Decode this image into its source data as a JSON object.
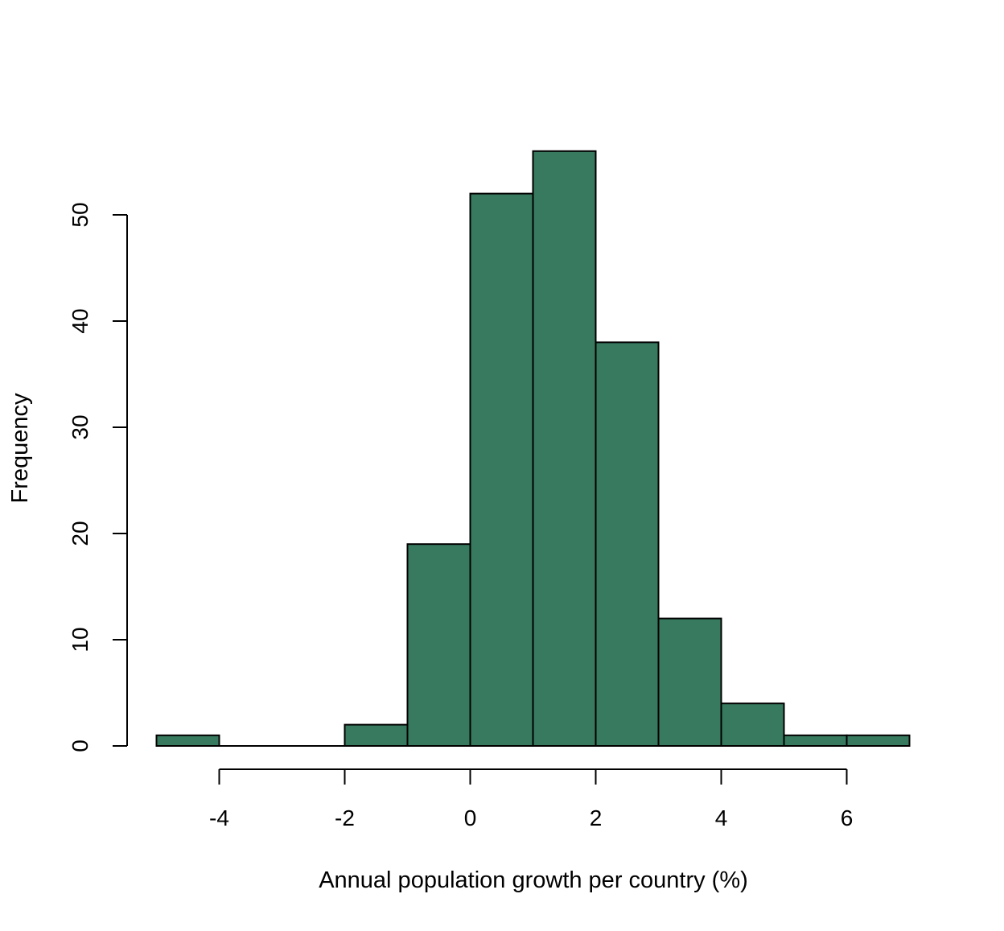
{
  "chart_data": {
    "type": "bar",
    "subtype": "histogram",
    "bins": [
      {
        "x0": -5,
        "x1": -4,
        "count": 1
      },
      {
        "x0": -4,
        "x1": -3,
        "count": 0
      },
      {
        "x0": -3,
        "x1": -2,
        "count": 0
      },
      {
        "x0": -2,
        "x1": -1,
        "count": 2
      },
      {
        "x0": -1,
        "x1": 0,
        "count": 19
      },
      {
        "x0": 0,
        "x1": 1,
        "count": 52
      },
      {
        "x0": 1,
        "x1": 2,
        "count": 56
      },
      {
        "x0": 2,
        "x1": 3,
        "count": 38
      },
      {
        "x0": 3,
        "x1": 4,
        "count": 12
      },
      {
        "x0": 4,
        "x1": 5,
        "count": 4
      },
      {
        "x0": 5,
        "x1": 6,
        "count": 1
      },
      {
        "x0": 6,
        "x1": 7,
        "count": 1
      }
    ],
    "title": "",
    "xlabel": "Annual population growth per country (%)",
    "ylabel": "Frequency",
    "x_ticks": [
      -4,
      -2,
      0,
      2,
      4,
      6
    ],
    "x_tick_labels": [
      "-4",
      "-2",
      "0",
      "2",
      "4",
      "6"
    ],
    "y_ticks": [
      0,
      10,
      20,
      30,
      40,
      50
    ],
    "y_tick_labels": [
      "0",
      "10",
      "20",
      "30",
      "40",
      "50"
    ],
    "xlim": [
      -5,
      7
    ],
    "ylim": [
      0,
      56
    ],
    "grid": false,
    "bar_color": "#387a60",
    "edge_color": "#000000"
  }
}
